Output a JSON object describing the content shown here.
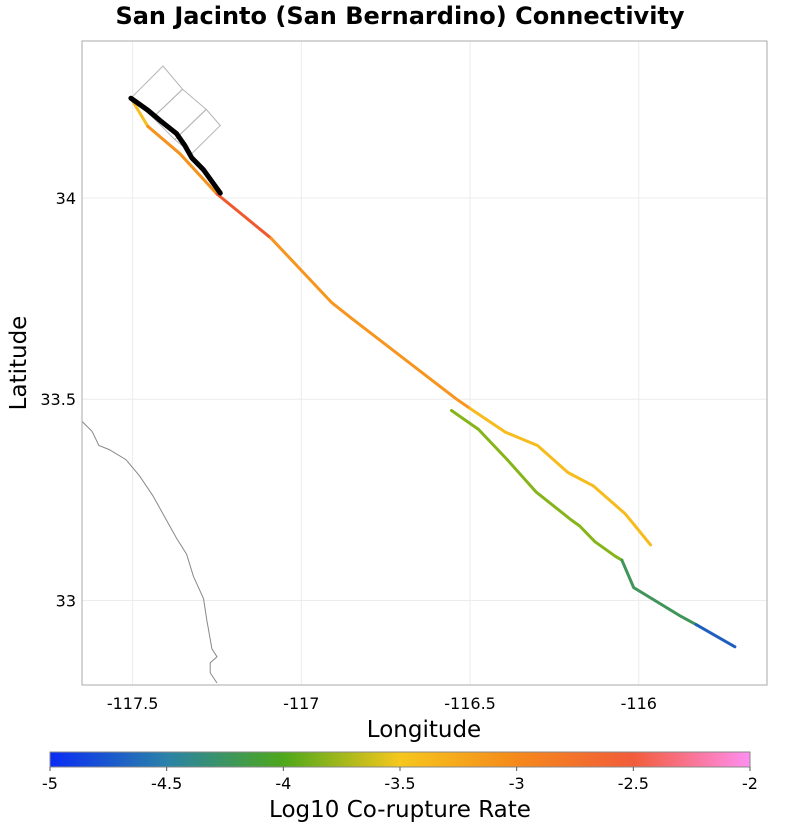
{
  "title": "San Jacinto (San Bernardino) Connectivity",
  "axes": {
    "xlabel": "Longitude",
    "ylabel": "Latitude",
    "xlim": [
      -117.65,
      -115.62
    ],
    "ylim": [
      32.79,
      34.39
    ],
    "xticks": [
      -117.5,
      -117,
      -116.5,
      -116
    ],
    "xtick_labels": [
      "-117.5",
      "-117",
      "-116.5",
      "-116"
    ],
    "yticks": [
      33,
      33.5,
      34
    ],
    "ytick_labels": [
      "33",
      "33.5",
      "34"
    ],
    "grid": true
  },
  "colorbar": {
    "label": "Log10 Co-rupture Rate",
    "range": [
      -5,
      -2
    ],
    "ticks": [
      -5,
      -4.5,
      -4,
      -3.5,
      -3,
      -2.5,
      -2
    ],
    "tick_labels": [
      "-5",
      "-4.5",
      "-4",
      "-3.5",
      "-3",
      "-2.5",
      "-2"
    ],
    "gradient": [
      {
        "stop": 0.0,
        "color": "#0a2cf5"
      },
      {
        "stop": 0.167,
        "color": "#2a82a8"
      },
      {
        "stop": 0.333,
        "color": "#4ea81a"
      },
      {
        "stop": 0.5,
        "color": "#f6c71d"
      },
      {
        "stop": 0.667,
        "color": "#f5891b"
      },
      {
        "stop": 0.833,
        "color": "#f25c3a"
      },
      {
        "stop": 1.0,
        "color": "#ff8ef0"
      }
    ]
  },
  "colors": {
    "source_fault": "#000000",
    "coastline": "#888888",
    "fault_surface": "#b5b5b5",
    "grid": "#ececec",
    "frame": "#aaaaaa"
  },
  "chart_data": {
    "type": "map",
    "fault_traces": [
      {
        "color": "#f6bf1e",
        "value": -3.4,
        "points": [
          [
            -117.505,
            34.248
          ],
          [
            -117.455,
            34.178
          ]
        ]
      },
      {
        "color": "#f5911d",
        "value": -3.0,
        "points": [
          [
            -117.455,
            34.178
          ],
          [
            -117.36,
            34.11
          ],
          [
            -117.25,
            34.01
          ]
        ]
      },
      {
        "color": "#f0582d",
        "value": -2.7,
        "points": [
          [
            -117.25,
            34.01
          ],
          [
            -117.09,
            33.9
          ]
        ]
      },
      {
        "color": "#f7951f",
        "value": -3.0,
        "points": [
          [
            -117.09,
            33.9
          ],
          [
            -116.91,
            33.74
          ],
          [
            -116.85,
            33.7
          ],
          [
            -116.54,
            33.5
          ],
          [
            -116.5,
            33.477
          ]
        ]
      },
      {
        "color": "#f6bc1e",
        "value": -3.4,
        "points": [
          [
            -116.5,
            33.477
          ],
          [
            -116.395,
            33.418
          ],
          [
            -116.3,
            33.385
          ],
          [
            -116.21,
            33.318
          ],
          [
            -116.135,
            33.285
          ],
          [
            -116.04,
            33.215
          ],
          [
            -115.965,
            33.138
          ]
        ]
      },
      {
        "color": "#86b51a",
        "value": -3.8,
        "points": [
          [
            -116.555,
            33.472
          ],
          [
            -116.475,
            33.425
          ],
          [
            -116.39,
            33.35
          ],
          [
            -116.305,
            33.27
          ],
          [
            -116.2,
            33.2
          ],
          [
            -116.175,
            33.185
          ],
          [
            -116.13,
            33.146
          ],
          [
            -116.07,
            33.11
          ],
          [
            -116.05,
            33.1
          ]
        ]
      },
      {
        "color": "#3f955a",
        "value": -4.4,
        "points": [
          [
            -116.05,
            33.1
          ],
          [
            -116.015,
            33.032
          ],
          [
            -115.88,
            32.963
          ],
          [
            -115.83,
            32.94
          ]
        ]
      },
      {
        "color": "#1e5fbe",
        "value": -4.7,
        "points": [
          [
            -115.83,
            32.94
          ],
          [
            -115.715,
            32.885
          ]
        ]
      }
    ],
    "source_fault": {
      "name": "",
      "points": [
        [
          -117.505,
          34.248
        ],
        [
          -117.455,
          34.218
        ],
        [
          -117.418,
          34.192
        ],
        [
          -117.37,
          34.16
        ],
        [
          -117.345,
          34.13
        ],
        [
          -117.325,
          34.1
        ],
        [
          -117.29,
          34.07
        ],
        [
          -117.24,
          34.012
        ]
      ]
    },
    "fault_surface_polygons": [
      [
        [
          -117.505,
          34.248
        ],
        [
          -117.41,
          34.328
        ],
        [
          -117.352,
          34.27
        ],
        [
          -117.44,
          34.2
        ]
      ],
      [
        [
          -117.44,
          34.2
        ],
        [
          -117.352,
          34.27
        ],
        [
          -117.282,
          34.22
        ],
        [
          -117.375,
          34.145
        ]
      ],
      [
        [
          -117.375,
          34.145
        ],
        [
          -117.282,
          34.22
        ],
        [
          -117.24,
          34.18
        ],
        [
          -117.325,
          34.11
        ]
      ]
    ],
    "coastline": [
      [
        -117.65,
        33.445
      ],
      [
        -117.62,
        33.42
      ],
      [
        -117.6,
        33.385
      ],
      [
        -117.57,
        33.375
      ],
      [
        -117.52,
        33.35
      ],
      [
        -117.48,
        33.31
      ],
      [
        -117.44,
        33.26
      ],
      [
        -117.4,
        33.2
      ],
      [
        -117.37,
        33.155
      ],
      [
        -117.34,
        33.115
      ],
      [
        -117.32,
        33.06
      ],
      [
        -117.29,
        33.005
      ],
      [
        -117.28,
        32.95
      ],
      [
        -117.265,
        32.88
      ],
      [
        -117.25,
        32.86
      ],
      [
        -117.27,
        32.845
      ],
      [
        -117.27,
        32.82
      ],
      [
        -117.25,
        32.795
      ]
    ]
  }
}
